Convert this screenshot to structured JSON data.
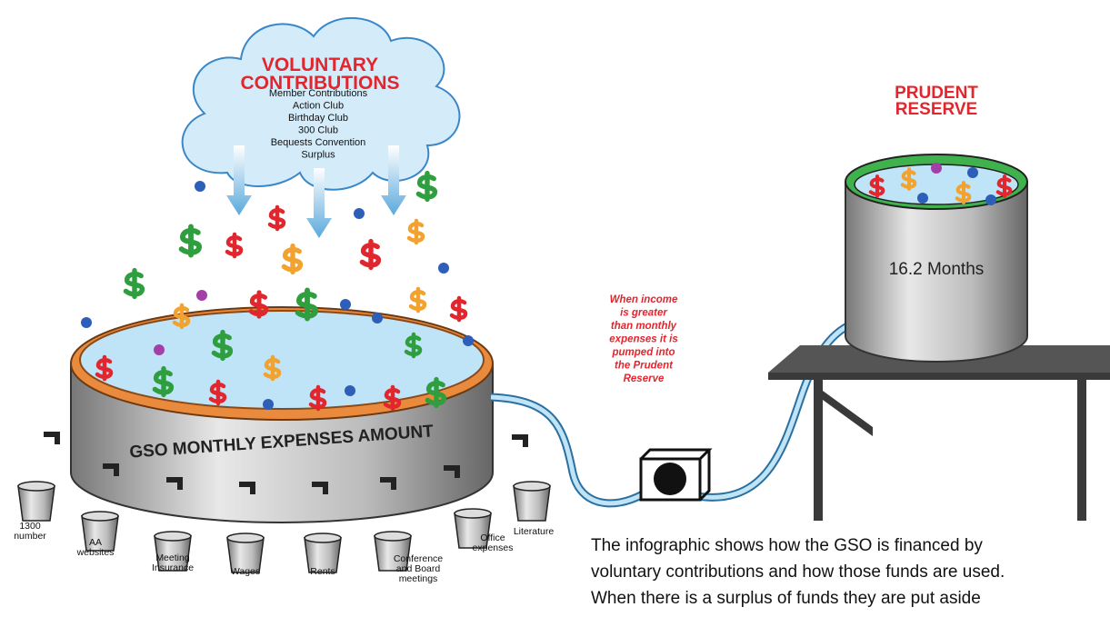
{
  "cloud": {
    "title": [
      "VOLUNTARY",
      "CONTRIBUTIONS"
    ],
    "items": [
      "Member Contributions",
      "Action Club",
      "Birthday Club",
      "300 Club",
      "Bequests Convention",
      "Surplus"
    ]
  },
  "reserve": {
    "title": [
      "PRUDENT",
      "RESERVE"
    ],
    "amount": "16.2 Months"
  },
  "note": [
    "When income",
    "is greater",
    "than monthly",
    "expenses it is",
    "pumped into",
    "the Prudent",
    "Reserve"
  ],
  "pool_label": "GSO MONTHLY EXPENSES AMOUNT",
  "buckets": [
    [
      "1300",
      "number"
    ],
    [
      "AA",
      "websites"
    ],
    [
      "Meeting",
      "Insurance"
    ],
    [
      "Wages"
    ],
    [
      "Rents"
    ],
    [
      "Conference",
      "and Board",
      "meetings"
    ],
    [
      "Office",
      "expenses"
    ],
    [
      "Literature"
    ]
  ],
  "caption": [
    "The infographic shows how the GSO is financed by",
    "voluntary contributions and how those funds are used.",
    "When there is a surplus of funds they are put aside"
  ]
}
